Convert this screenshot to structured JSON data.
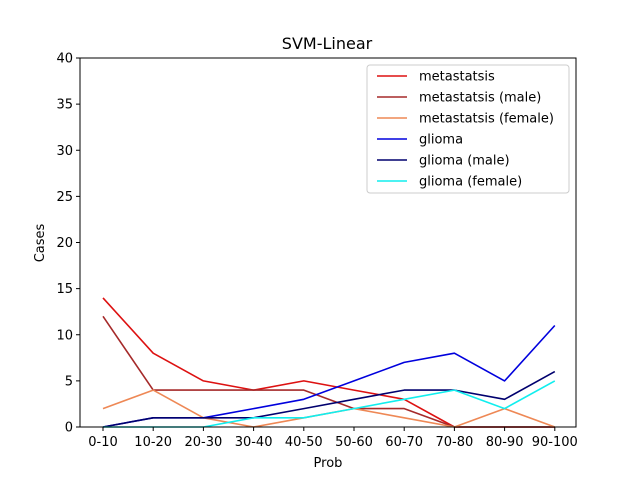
{
  "chart_data": {
    "type": "line",
    "title": "SVM-Linear",
    "xlabel": "Prob",
    "ylabel": "Cases",
    "categories": [
      "0-10",
      "10-20",
      "20-30",
      "30-40",
      "40-50",
      "50-60",
      "60-70",
      "70-80",
      "80-90",
      "90-100"
    ],
    "ylim": [
      0,
      40
    ],
    "yticks": [
      0,
      5,
      10,
      15,
      20,
      25,
      30,
      35,
      40
    ],
    "grid": false,
    "legend_position": "top-right",
    "series": [
      {
        "name": "metastatsis",
        "color": "#dd1111",
        "values": [
          14,
          8,
          5,
          4,
          5,
          4,
          3,
          0,
          0,
          0
        ]
      },
      {
        "name": "metastatsis (male)",
        "color": "#a52a2a",
        "values": [
          12,
          4,
          4,
          4,
          4,
          2,
          2,
          0,
          0,
          0
        ]
      },
      {
        "name": "metastatsis (female)",
        "color": "#ee8855",
        "values": [
          2,
          4,
          1,
          0,
          1,
          2,
          1,
          0,
          2,
          0
        ]
      },
      {
        "name": "glioma",
        "color": "#0000dd",
        "values": [
          0,
          1,
          1,
          2,
          3,
          5,
          7,
          8,
          5,
          11
        ]
      },
      {
        "name": "glioma (male)",
        "color": "#00006e",
        "values": [
          0,
          1,
          1,
          1,
          2,
          3,
          4,
          4,
          3,
          6
        ]
      },
      {
        "name": "glioma (female)",
        "color": "#11eeee",
        "values": [
          0,
          0,
          0,
          1,
          1,
          2,
          3,
          4,
          2,
          5
        ]
      }
    ]
  }
}
